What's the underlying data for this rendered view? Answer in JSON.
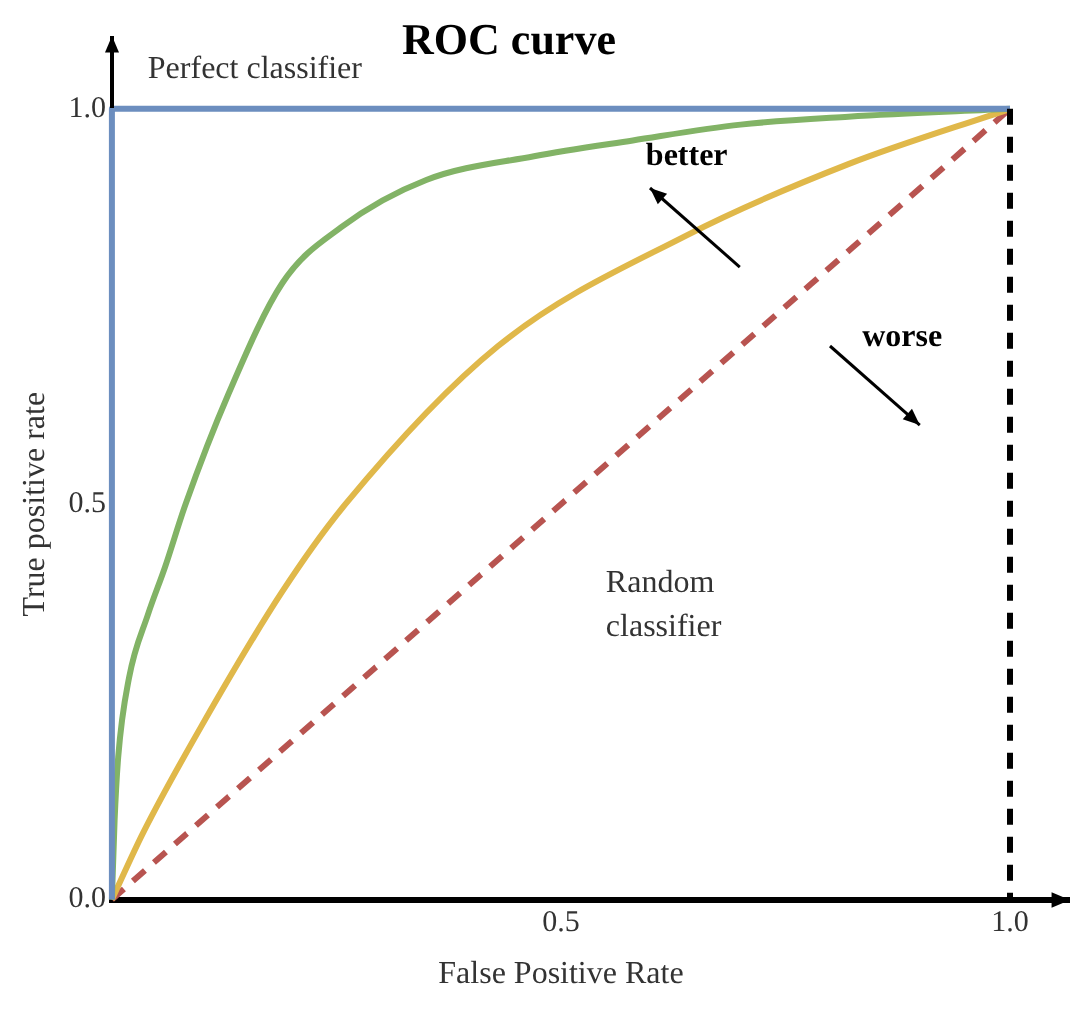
{
  "chart_data": {
    "type": "line",
    "title": "ROC curve",
    "xlabel": "False Positive Rate",
    "ylabel": "True positive rate",
    "xlim": [
      0,
      1
    ],
    "ylim": [
      0,
      1
    ],
    "xticks": [
      {
        "value": 0.5,
        "label": "0.5"
      },
      {
        "value": 1,
        "label": "1.0"
      }
    ],
    "yticks": [
      {
        "value": 0,
        "label": "0.0"
      },
      {
        "value": 0.5,
        "label": "0.5"
      },
      {
        "value": 1,
        "label": "1.0"
      }
    ],
    "grid": false,
    "legend": false,
    "marker": "none",
    "series": [
      {
        "name": "Perfect classifier",
        "color": "#6c8ebf",
        "x": [
          0,
          0,
          1
        ],
        "values": [
          0,
          1,
          1
        ]
      },
      {
        "color": "#82b366",
        "x": [
          0,
          0.003,
          0.007,
          0.019,
          0.04,
          0.059,
          0.082,
          0.13,
          0.19,
          0.255,
          0.35,
          0.47,
          0.58,
          0.7,
          0.82,
          1
        ],
        "values": [
          0,
          0.1,
          0.18,
          0.28,
          0.36,
          0.42,
          0.5,
          0.64,
          0.78,
          0.85,
          0.91,
          0.94,
          0.96,
          0.98,
          0.99,
          1
        ]
      },
      {
        "color": "#e0b84a",
        "x": [
          0,
          0.035,
          0.1,
          0.19,
          0.26,
          0.43,
          0.64,
          0.82,
          1
        ],
        "values": [
          0,
          0.085,
          0.22,
          0.39,
          0.5,
          0.7,
          0.84,
          0.93,
          1
        ]
      },
      {
        "name": "Random classifier",
        "color": "#b85450",
        "line_style": "dashed",
        "x": [
          0,
          1
        ],
        "values": [
          0,
          1
        ]
      }
    ],
    "ref_lines": [
      {
        "axis": "x",
        "value": 1,
        "color": "#000000",
        "line_style": "dashed"
      }
    ],
    "annotations": [
      "better",
      "worse"
    ]
  }
}
